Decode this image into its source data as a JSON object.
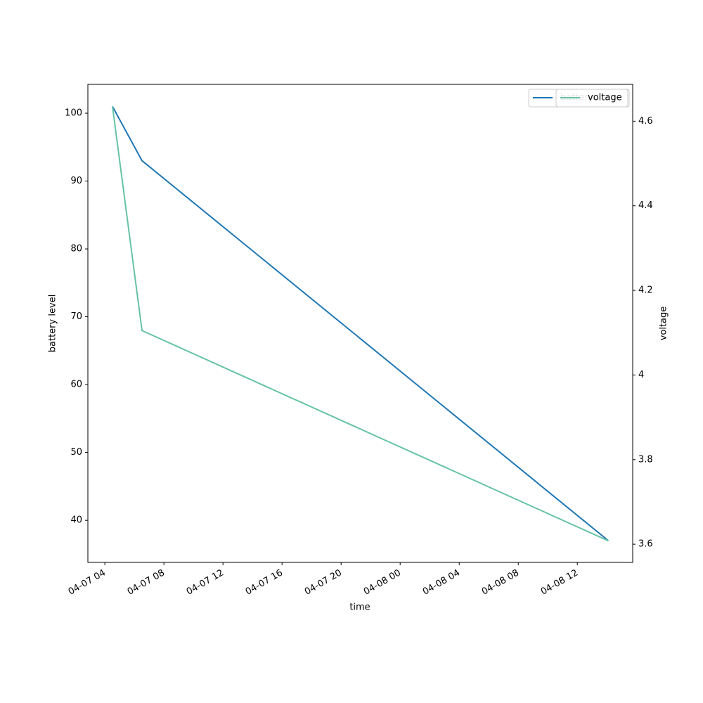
{
  "chart_data": {
    "type": "line",
    "x": [
      "04-07 04:31",
      "04-07 06:31",
      "04-08 14:06"
    ],
    "xlim": [
      "04-07 02:51",
      "04-08 15:45"
    ],
    "xticks": [
      "04-07 04",
      "04-07 08",
      "04-07 12",
      "04-07 16",
      "04-07 20",
      "04-08 00",
      "04-08 04",
      "04-08 08",
      "04-08 12"
    ],
    "xlabel": "time",
    "ylabel": "battery level",
    "y2label": "voltage",
    "ylim": [
      33.8,
      104.25
    ],
    "yticks": [
      40,
      50,
      60,
      70,
      80,
      90,
      100
    ],
    "y2lim": [
      3.557,
      4.687
    ],
    "y2ticks": [
      3.6,
      3.8,
      4.0,
      4.2,
      4.4,
      4.6
    ],
    "series": [
      {
        "name": "battery",
        "color": "#1f77b4",
        "values": [
          101,
          93,
          37
        ]
      },
      {
        "name": "voltage",
        "color": "#66c2a5",
        "values": [
          4.635,
          4.105,
          3.608
        ],
        "axis": "y2"
      }
    ],
    "legend": "upper right"
  }
}
